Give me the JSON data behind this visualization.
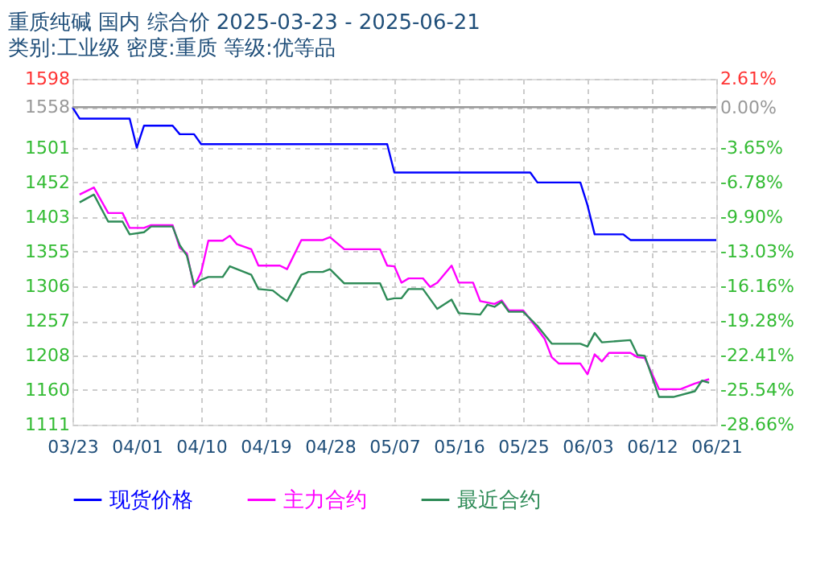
{
  "chart_data": {
    "type": "line",
    "title": "重质纯碱 国内 综合价 2025-03-23 - 2025-06-21",
    "subtitle": "类别:工业级 密度:重质 等级:优等品",
    "xlim": [
      "2025-03-23",
      "2025-06-21"
    ],
    "xticks": [
      {
        "value": "2025-03-23",
        "label": "03/23"
      },
      {
        "value": "2025-04-01",
        "label": "04/01"
      },
      {
        "value": "2025-04-10",
        "label": "04/10"
      },
      {
        "value": "2025-04-19",
        "label": "04/19"
      },
      {
        "value": "2025-04-28",
        "label": "04/28"
      },
      {
        "value": "2025-05-07",
        "label": "05/07"
      },
      {
        "value": "2025-05-16",
        "label": "05/16"
      },
      {
        "value": "2025-05-25",
        "label": "05/25"
      },
      {
        "value": "2025-06-03",
        "label": "06/03"
      },
      {
        "value": "2025-06-12",
        "label": "06/12"
      },
      {
        "value": "2025-06-21",
        "label": "06/21"
      }
    ],
    "ylim": [
      1111,
      1598
    ],
    "yticks": [
      1111,
      1160,
      1208,
      1257,
      1306,
      1355,
      1403,
      1452,
      1501,
      1558,
      1598
    ],
    "y2lim": [
      -28.66,
      2.61
    ],
    "y2ticks": [
      {
        "value": -28.66,
        "label": "-28.66%"
      },
      {
        "value": -25.54,
        "label": "-25.54%"
      },
      {
        "value": -22.41,
        "label": "-22.41%"
      },
      {
        "value": -19.28,
        "label": "-19.28%"
      },
      {
        "value": -16.16,
        "label": "-16.16%"
      },
      {
        "value": -13.03,
        "label": "-13.03%"
      },
      {
        "value": -9.9,
        "label": "-9.90%"
      },
      {
        "value": -6.78,
        "label": "-6.78%"
      },
      {
        "value": -3.65,
        "label": "-3.65%"
      },
      {
        "value": 0,
        "label": "0.00%"
      },
      {
        "value": 2.61,
        "label": "2.61%"
      }
    ],
    "ref_lines": [
      {
        "axis": "y",
        "value": 1558,
        "color": "#999999"
      }
    ],
    "grid": true,
    "legend": "bottom",
    "marker": "none",
    "line_style": "solid",
    "series": [
      {
        "name": "现货价格",
        "color": "#0000ff",
        "x": [
          "2025-03-23",
          "2025-03-24",
          "2025-03-31",
          "2025-04-01",
          "2025-04-02",
          "2025-04-06",
          "2025-04-07",
          "2025-04-09",
          "2025-04-10",
          "2025-05-06",
          "2025-05-07",
          "2025-05-26",
          "2025-05-27",
          "2025-06-02",
          "2025-06-03",
          "2025-06-04",
          "2025-06-08",
          "2025-06-09",
          "2025-06-21"
        ],
        "values": [
          1558,
          1542,
          1542,
          1501,
          1532,
          1532,
          1520,
          1520,
          1506,
          1506,
          1466,
          1466,
          1452,
          1452,
          1420,
          1379,
          1379,
          1371,
          1371
        ]
      },
      {
        "name": "主力合约",
        "color": "#ff00ff",
        "x": [
          "2025-03-24",
          "2025-03-26",
          "2025-03-28",
          "2025-03-30",
          "2025-03-31",
          "2025-04-02",
          "2025-04-03",
          "2025-04-06",
          "2025-04-07",
          "2025-04-08",
          "2025-04-09",
          "2025-04-10",
          "2025-04-11",
          "2025-04-13",
          "2025-04-14",
          "2025-04-15",
          "2025-04-17",
          "2025-04-18",
          "2025-04-21",
          "2025-04-22",
          "2025-04-24",
          "2025-04-27",
          "2025-04-28",
          "2025-04-30",
          "2025-05-05",
          "2025-05-06",
          "2025-05-07",
          "2025-05-08",
          "2025-05-09",
          "2025-05-11",
          "2025-05-12",
          "2025-05-13",
          "2025-05-15",
          "2025-05-16",
          "2025-05-18",
          "2025-05-19",
          "2025-05-20",
          "2025-05-21",
          "2025-05-22",
          "2025-05-23",
          "2025-05-25",
          "2025-05-26",
          "2025-05-28",
          "2025-05-29",
          "2025-05-30",
          "2025-06-02",
          "2025-06-03",
          "2025-06-04",
          "2025-06-05",
          "2025-06-06",
          "2025-06-09",
          "2025-06-10",
          "2025-06-11",
          "2025-06-13",
          "2025-06-16",
          "2025-06-18",
          "2025-06-20"
        ],
        "values": [
          1435,
          1445,
          1409,
          1409,
          1388,
          1388,
          1392,
          1392,
          1360,
          1352,
          1305,
          1326,
          1370,
          1370,
          1377,
          1365,
          1358,
          1335,
          1335,
          1330,
          1371,
          1371,
          1375,
          1358,
          1358,
          1335,
          1334,
          1311,
          1317,
          1317,
          1305,
          1311,
          1335,
          1311,
          1311,
          1285,
          1283,
          1281,
          1286,
          1272,
          1272,
          1259,
          1232,
          1206,
          1197,
          1197,
          1182,
          1210,
          1200,
          1212,
          1212,
          1206,
          1205,
          1161,
          1161,
          1169,
          1175
        ]
      },
      {
        "name": "最近合约",
        "color": "#2e8b57",
        "x": [
          "2025-03-24",
          "2025-03-26",
          "2025-03-28",
          "2025-03-30",
          "2025-03-31",
          "2025-04-02",
          "2025-04-03",
          "2025-04-06",
          "2025-04-07",
          "2025-04-08",
          "2025-04-09",
          "2025-04-10",
          "2025-04-11",
          "2025-04-13",
          "2025-04-14",
          "2025-04-15",
          "2025-04-17",
          "2025-04-18",
          "2025-04-20",
          "2025-04-21",
          "2025-04-22",
          "2025-04-24",
          "2025-04-25",
          "2025-04-27",
          "2025-04-28",
          "2025-04-30",
          "2025-05-05",
          "2025-05-06",
          "2025-05-07",
          "2025-05-08",
          "2025-05-09",
          "2025-05-11",
          "2025-05-13",
          "2025-05-15",
          "2025-05-16",
          "2025-05-19",
          "2025-05-20",
          "2025-05-21",
          "2025-05-22",
          "2025-05-23",
          "2025-05-25",
          "2025-05-27",
          "2025-05-29",
          "2025-06-02",
          "2025-06-03",
          "2025-06-04",
          "2025-06-05",
          "2025-06-09",
          "2025-06-10",
          "2025-06-11",
          "2025-06-13",
          "2025-06-15",
          "2025-06-18",
          "2025-06-19",
          "2025-06-20"
        ],
        "values": [
          1424,
          1435,
          1397,
          1397,
          1379,
          1382,
          1390,
          1390,
          1364,
          1349,
          1308,
          1315,
          1319,
          1319,
          1334,
          1330,
          1322,
          1302,
          1300,
          1292,
          1285,
          1322,
          1326,
          1326,
          1330,
          1310,
          1310,
          1287,
          1289,
          1289,
          1302,
          1302,
          1274,
          1287,
          1268,
          1266,
          1280,
          1277,
          1284,
          1270,
          1270,
          1250,
          1225,
          1225,
          1221,
          1240,
          1227,
          1230,
          1209,
          1208,
          1150,
          1150,
          1158,
          1173,
          1170
        ]
      }
    ]
  }
}
